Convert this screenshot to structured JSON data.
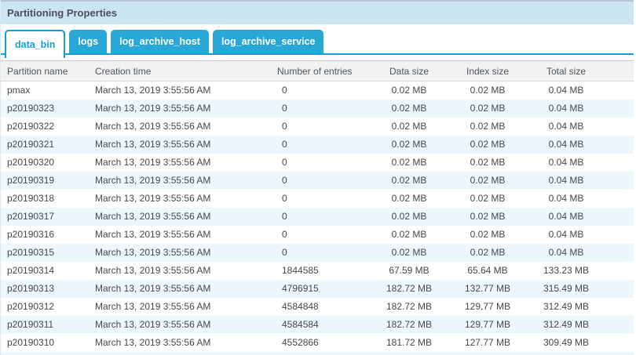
{
  "panel": {
    "title": "Partitioning Properties"
  },
  "tabs": [
    {
      "label": "data_bin",
      "active": true
    },
    {
      "label": "logs",
      "active": false
    },
    {
      "label": "log_archive_host",
      "active": false
    },
    {
      "label": "log_archive_service",
      "active": false
    }
  ],
  "table": {
    "columns": [
      {
        "key": "partition",
        "label": "Partition name"
      },
      {
        "key": "creation",
        "label": "Creation time"
      },
      {
        "key": "entries",
        "label": "Number of entries"
      },
      {
        "key": "data_size",
        "label": "Data size"
      },
      {
        "key": "index_size",
        "label": "Index size"
      },
      {
        "key": "total_size",
        "label": "Total size"
      }
    ],
    "rows": [
      {
        "partition": "pmax",
        "creation": "March 13, 2019 3:55:56 AM",
        "entries": "0",
        "data_size": "0.02 MB",
        "index_size": "0.02 MB",
        "total_size": "0.04 MB"
      },
      {
        "partition": "p20190323",
        "creation": "March 13, 2019 3:55:56 AM",
        "entries": "0",
        "data_size": "0.02 MB",
        "index_size": "0.02 MB",
        "total_size": "0.04 MB"
      },
      {
        "partition": "p20190322",
        "creation": "March 13, 2019 3:55:56 AM",
        "entries": "0",
        "data_size": "0.02 MB",
        "index_size": "0.02 MB",
        "total_size": "0.04 MB"
      },
      {
        "partition": "p20190321",
        "creation": "March 13, 2019 3:55:56 AM",
        "entries": "0",
        "data_size": "0.02 MB",
        "index_size": "0.02 MB",
        "total_size": "0.04 MB"
      },
      {
        "partition": "p20190320",
        "creation": "March 13, 2019 3:55:56 AM",
        "entries": "0",
        "data_size": "0.02 MB",
        "index_size": "0.02 MB",
        "total_size": "0.04 MB"
      },
      {
        "partition": "p20190319",
        "creation": "March 13, 2019 3:55:56 AM",
        "entries": "0",
        "data_size": "0.02 MB",
        "index_size": "0.02 MB",
        "total_size": "0.04 MB"
      },
      {
        "partition": "p20190318",
        "creation": "March 13, 2019 3:55:56 AM",
        "entries": "0",
        "data_size": "0.02 MB",
        "index_size": "0.02 MB",
        "total_size": "0.04 MB"
      },
      {
        "partition": "p20190317",
        "creation": "March 13, 2019 3:55:56 AM",
        "entries": "0",
        "data_size": "0.02 MB",
        "index_size": "0.02 MB",
        "total_size": "0.04 MB"
      },
      {
        "partition": "p20190316",
        "creation": "March 13, 2019 3:55:56 AM",
        "entries": "0",
        "data_size": "0.02 MB",
        "index_size": "0.02 MB",
        "total_size": "0.04 MB"
      },
      {
        "partition": "p20190315",
        "creation": "March 13, 2019 3:55:56 AM",
        "entries": "0",
        "data_size": "0.02 MB",
        "index_size": "0.02 MB",
        "total_size": "0.04 MB"
      },
      {
        "partition": "p20190314",
        "creation": "March 13, 2019 3:55:56 AM",
        "entries": "1844585",
        "data_size": "67.59 MB",
        "index_size": "65.64 MB",
        "total_size": "133.23 MB"
      },
      {
        "partition": "p20190313",
        "creation": "March 13, 2019 3:55:56 AM",
        "entries": "4796915",
        "data_size": "182.72 MB",
        "index_size": "132.77 MB",
        "total_size": "315.49 MB"
      },
      {
        "partition": "p20190312",
        "creation": "March 13, 2019 3:55:56 AM",
        "entries": "4584848",
        "data_size": "182.72 MB",
        "index_size": "129.77 MB",
        "total_size": "312.49 MB"
      },
      {
        "partition": "p20190311",
        "creation": "March 13, 2019 3:55:56 AM",
        "entries": "4584584",
        "data_size": "182.72 MB",
        "index_size": "129.77 MB",
        "total_size": "312.49 MB"
      },
      {
        "partition": "p20190310",
        "creation": "March 13, 2019 3:55:56 AM",
        "entries": "4552866",
        "data_size": "181.72 MB",
        "index_size": "127.77 MB",
        "total_size": "309.49 MB"
      }
    ]
  },
  "colors": {
    "titlebar_bg": "#cae6f2",
    "titlebar_top_border": "#b6c3d6",
    "tab_bg": "#29a8d8",
    "tab_line": "#0f9ed6",
    "active_tab_text": "#149fd6",
    "header_bg": "#f2f2f2",
    "alt_row_bg": "#edf7fc",
    "text": "#44494e"
  }
}
